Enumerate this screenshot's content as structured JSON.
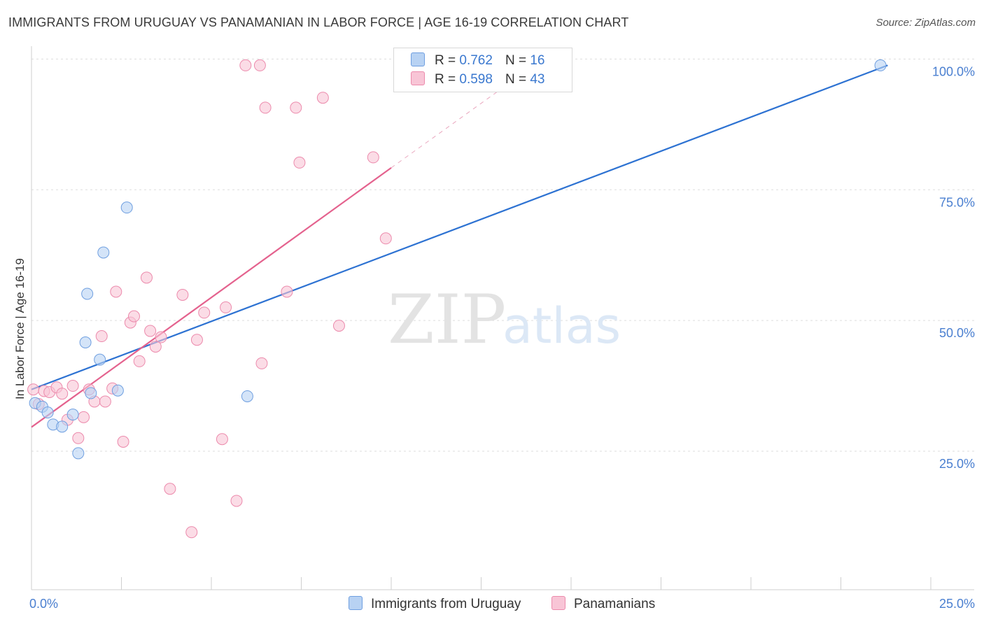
{
  "title": "IMMIGRANTS FROM URUGUAY VS PANAMANIAN IN LABOR FORCE | AGE 16-19 CORRELATION CHART",
  "source": "Source: ZipAtlas.com",
  "watermark": {
    "zip": "ZIP",
    "atlas": "atlas"
  },
  "colors": {
    "blue_fill": "#b8d2f3",
    "blue_stroke": "#6f9fe0",
    "blue_line": "#2d72d2",
    "pink_fill": "#f8c5d6",
    "pink_stroke": "#ec8aac",
    "pink_line": "#e4628e",
    "tick_text": "#4a7fd0",
    "grid": "#dddddd"
  },
  "legend": {
    "rows": [
      {
        "r_label": "R =",
        "r_value": "0.762",
        "n_label": "N =",
        "n_value": "16"
      },
      {
        "r_label": "R =",
        "r_value": "0.598",
        "n_label": "N =",
        "n_value": "43"
      }
    ]
  },
  "bottom_legend": {
    "series1": "Immigrants from Uruguay",
    "series2": "Panamanians"
  },
  "chart_data": {
    "type": "scatter",
    "title": "IMMIGRANTS FROM URUGUAY VS PANAMANIAN IN LABOR FORCE | AGE 16-19 CORRELATION CHART",
    "xlabel": "",
    "ylabel": "In Labor Force | Age 16-19",
    "xlim": [
      0,
      25
    ],
    "ylim": [
      -1.5,
      103
    ],
    "x_tick_labels": [
      "0.0%",
      "25.0%"
    ],
    "y_ticks": [
      25,
      50,
      75,
      100
    ],
    "y_tick_labels": [
      "25.0%",
      "50.0%",
      "75.0%",
      "100.0%"
    ],
    "series": [
      {
        "name": "Immigrants from Uruguay",
        "color": "#b8d2f3",
        "R": 0.762,
        "N": 16,
        "points": [
          [
            0.1,
            34.2
          ],
          [
            0.3,
            33.5
          ],
          [
            0.45,
            32.4
          ],
          [
            0.6,
            30.1
          ],
          [
            0.85,
            29.7
          ],
          [
            1.15,
            32.0
          ],
          [
            1.3,
            24.6
          ],
          [
            1.5,
            45.8
          ],
          [
            1.55,
            55.1
          ],
          [
            1.65,
            36.1
          ],
          [
            1.9,
            42.5
          ],
          [
            2.0,
            63.0
          ],
          [
            2.4,
            36.6
          ],
          [
            2.65,
            71.6
          ],
          [
            6.0,
            35.5
          ],
          [
            23.6,
            98.8
          ]
        ],
        "trend": {
          "x0": 0,
          "y0": 36.8,
          "x1": 23.8,
          "y1": 98.8
        }
      },
      {
        "name": "Panamanians",
        "color": "#f8c5d6",
        "R": 0.598,
        "N": 43,
        "points": [
          [
            0.05,
            36.8
          ],
          [
            0.2,
            34.0
          ],
          [
            0.35,
            36.5
          ],
          [
            0.5,
            36.3
          ],
          [
            0.7,
            37.2
          ],
          [
            0.85,
            36.0
          ],
          [
            1.0,
            31.0
          ],
          [
            1.15,
            37.5
          ],
          [
            1.3,
            27.5
          ],
          [
            1.45,
            31.5
          ],
          [
            1.6,
            36.8
          ],
          [
            1.75,
            34.5
          ],
          [
            1.95,
            47.0
          ],
          [
            2.05,
            34.5
          ],
          [
            2.25,
            37.0
          ],
          [
            2.35,
            55.5
          ],
          [
            2.55,
            26.8
          ],
          [
            2.75,
            49.6
          ],
          [
            2.85,
            50.8
          ],
          [
            3.0,
            42.2
          ],
          [
            3.2,
            58.2
          ],
          [
            3.3,
            48.0
          ],
          [
            3.45,
            45.0
          ],
          [
            3.6,
            46.8
          ],
          [
            3.85,
            17.8
          ],
          [
            4.2,
            54.9
          ],
          [
            4.45,
            9.5
          ],
          [
            4.6,
            46.3
          ],
          [
            4.8,
            51.5
          ],
          [
            5.3,
            27.3
          ],
          [
            5.4,
            52.5
          ],
          [
            5.7,
            15.5
          ],
          [
            5.95,
            98.8
          ],
          [
            6.35,
            98.8
          ],
          [
            6.4,
            41.8
          ],
          [
            6.5,
            90.7
          ],
          [
            7.1,
            55.5
          ],
          [
            7.35,
            90.7
          ],
          [
            7.45,
            80.2
          ],
          [
            8.1,
            92.6
          ],
          [
            8.55,
            49.0
          ],
          [
            9.5,
            81.2
          ],
          [
            9.85,
            65.7
          ]
        ],
        "trend": {
          "x0": 0,
          "y0": 29.6,
          "x1": 10.0,
          "y1": 79.2
        },
        "trend_extension": {
          "x0": 10.0,
          "y0": 79.2,
          "x1": 13.0,
          "y1": 94.0
        }
      }
    ]
  }
}
